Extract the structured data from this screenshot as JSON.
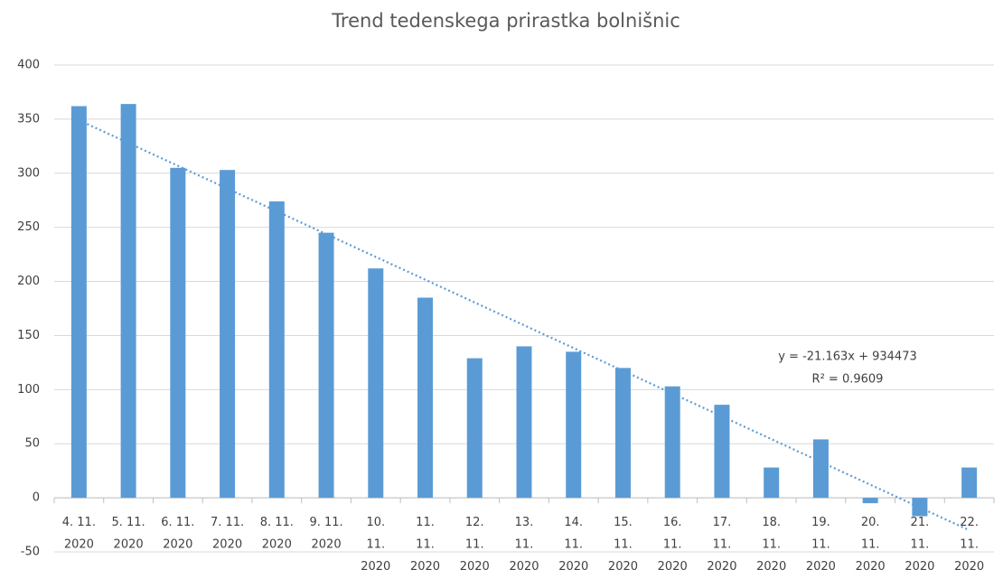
{
  "chart_data": {
    "type": "bar",
    "title": "Trend tedenskega prirastka bolnišnic",
    "categories": [
      "4. 11. 2020",
      "5. 11. 2020",
      "6. 11. 2020",
      "7. 11. 2020",
      "8. 11. 2020",
      "9. 11. 2020",
      "10. 11. 2020",
      "11. 11. 2020",
      "12. 11. 2020",
      "13. 11. 2020",
      "14. 11. 2020",
      "15. 11. 2020",
      "16. 11. 2020",
      "17. 11. 2020",
      "18. 11. 2020",
      "19. 11. 2020",
      "20. 11. 2020",
      "21. 11. 2020",
      "22. 11. 2020"
    ],
    "values": [
      362,
      364,
      305,
      303,
      274,
      245,
      212,
      185,
      129,
      140,
      135,
      120,
      103,
      86,
      28,
      54,
      -5,
      -17,
      28
    ],
    "color": "#5b9bd5",
    "ylim": [
      -50,
      400
    ],
    "yticks": [
      -50,
      0,
      50,
      100,
      150,
      200,
      250,
      300,
      350,
      400
    ],
    "grid": true,
    "trendline": {
      "values": [
        349,
        -30
      ],
      "equation": "y = -21.163x + 934473",
      "r_squared": "R² = 0.9609"
    }
  }
}
